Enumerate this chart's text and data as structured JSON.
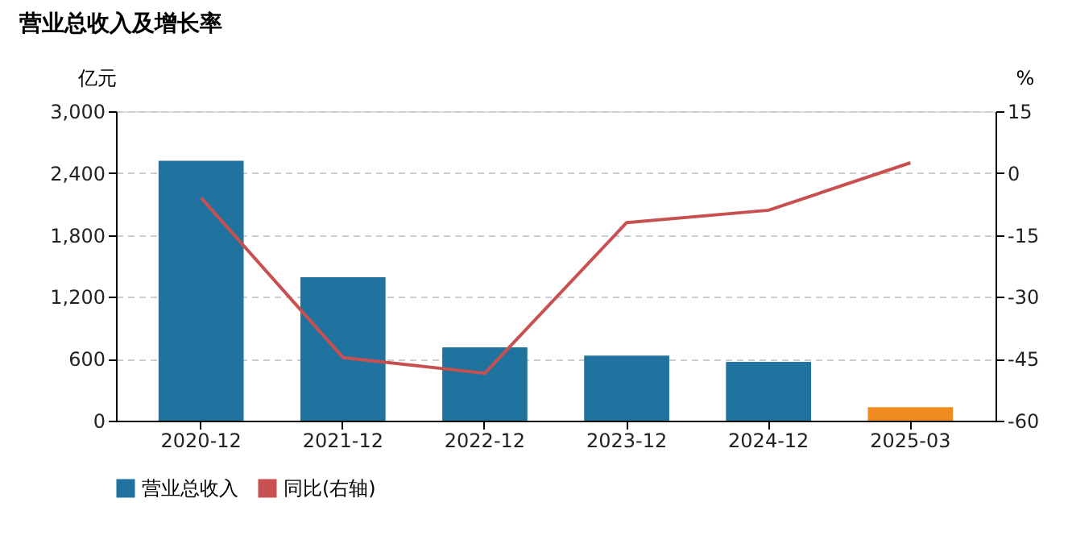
{
  "chart_data": {
    "type": "bar",
    "title": "营业总收入及增长率",
    "ylabel": "亿元",
    "y2label": "%",
    "categories": [
      "2020-12",
      "2021-12",
      "2022-12",
      "2023-12",
      "2024-12",
      "2025-03"
    ],
    "series": [
      {
        "name": "营业总收入",
        "color": "#21739f",
        "colors": [
          "#21739f",
          "#21739f",
          "#21739f",
          "#21739f",
          "#21739f",
          "#f08c1e"
        ],
        "values": [
          2520,
          1390,
          710,
          630,
          570,
          130
        ]
      },
      {
        "name": "同比(右轴)",
        "type": "line",
        "axis": "y2",
        "color": "#c85050",
        "values": [
          -6,
          -44.7,
          -48.5,
          -12,
          -9,
          2.5
        ]
      }
    ],
    "ylim": [
      0,
      3000
    ],
    "yticks": [
      {
        "value": 0,
        "label": "0"
      },
      {
        "value": 600,
        "label": "600"
      },
      {
        "value": 1200,
        "label": "1,200"
      },
      {
        "value": 1800,
        "label": "1,800"
      },
      {
        "value": 2400,
        "label": "2,400"
      },
      {
        "value": 3000,
        "label": "3,000"
      }
    ],
    "y2lim": [
      -60,
      15
    ],
    "y2ticks": [
      -60,
      -45,
      -30,
      -15,
      0,
      15
    ],
    "grid": "y",
    "legend": "bottom"
  }
}
